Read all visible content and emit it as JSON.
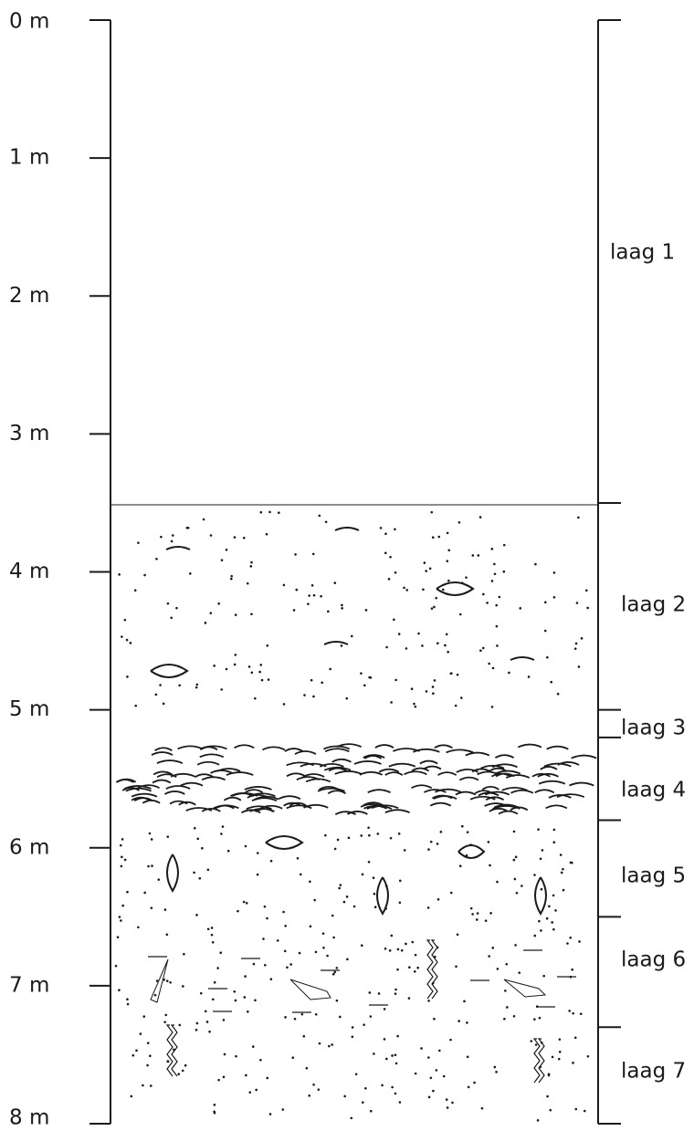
{
  "depth_labels": [
    "0 m",
    "1 m",
    "2 m",
    "3 m",
    "4 m",
    "5 m",
    "6 m",
    "7 m",
    "8 m"
  ],
  "layers": [
    {
      "label": "laag 1"
    },
    {
      "label": "laag 2"
    },
    {
      "label": "laag 3"
    },
    {
      "label": "laag 4"
    },
    {
      "label": "laag 5"
    },
    {
      "label": "laag 6"
    },
    {
      "label": "laag 7"
    }
  ]
}
